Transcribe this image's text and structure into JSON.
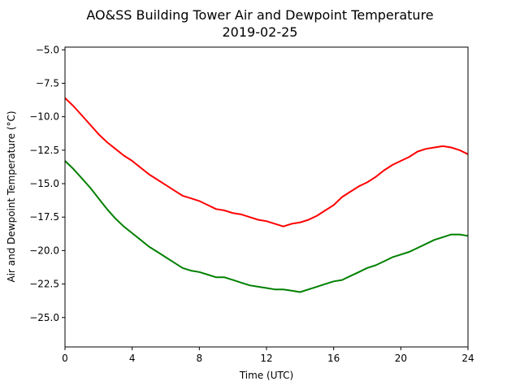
{
  "chart_data": {
    "type": "line",
    "title": "AO&SS Building Tower Air and Dewpoint Temperature",
    "subtitle": "2019-02-25",
    "xlabel": "Time (UTC)",
    "ylabel": "Air and Dewpoint Temperature (°C)",
    "xlim": [
      0,
      24
    ],
    "ylim": [
      -27.2,
      -4.8
    ],
    "xticks": [
      0,
      4,
      8,
      12,
      16,
      20,
      24
    ],
    "yticks": [
      -5.0,
      -7.5,
      -10.0,
      -12.5,
      -15.0,
      -17.5,
      -20.0,
      -22.5,
      -25.0
    ],
    "ytick_labels": [
      "−5.0",
      "−7.5",
      "−10.0",
      "−12.5",
      "−15.0",
      "−17.5",
      "−20.0",
      "−22.5",
      "−25.0"
    ],
    "grid": false,
    "legend": "none",
    "series": [
      {
        "color": "#ff0000",
        "x": [
          0,
          0.5,
          1,
          1.5,
          2,
          2.5,
          3,
          3.5,
          4,
          4.5,
          5,
          5.5,
          6,
          6.5,
          7,
          7.5,
          8,
          8.5,
          9,
          9.5,
          10,
          10.5,
          11,
          11.5,
          12,
          12.5,
          13,
          13.5,
          14,
          14.5,
          15,
          15.5,
          16,
          16.5,
          17,
          17.5,
          18,
          18.5,
          19,
          19.5,
          20,
          20.5,
          21,
          21.5,
          22,
          22.5,
          23,
          23.5,
          24
        ],
        "y": [
          -8.6,
          -9.2,
          -9.9,
          -10.6,
          -11.3,
          -11.9,
          -12.4,
          -12.9,
          -13.3,
          -13.8,
          -14.3,
          -14.7,
          -15.1,
          -15.5,
          -15.9,
          -16.1,
          -16.3,
          -16.6,
          -16.9,
          -17.0,
          -17.2,
          -17.3,
          -17.5,
          -17.7,
          -17.8,
          -18.0,
          -18.2,
          -18.0,
          -17.9,
          -17.7,
          -17.4,
          -17.0,
          -16.6,
          -16.0,
          -15.6,
          -15.2,
          -14.9,
          -14.5,
          -14.0,
          -13.6,
          -13.3,
          -13.0,
          -12.6,
          -12.4,
          -12.3,
          -12.2,
          -12.3,
          -12.5,
          -12.8
        ]
      },
      {
        "color": "#008000",
        "x": [
          0,
          0.5,
          1,
          1.5,
          2,
          2.5,
          3,
          3.5,
          4,
          4.5,
          5,
          5.5,
          6,
          6.5,
          7,
          7.5,
          8,
          8.5,
          9,
          9.5,
          10,
          10.5,
          11,
          11.5,
          12,
          12.5,
          13,
          13.5,
          14,
          14.5,
          15,
          15.5,
          16,
          16.5,
          17,
          17.5,
          18,
          18.5,
          19,
          19.5,
          20,
          20.5,
          21,
          21.5,
          22,
          22.5,
          23,
          23.5,
          24
        ],
        "y": [
          -13.3,
          -13.9,
          -14.6,
          -15.3,
          -16.1,
          -16.9,
          -17.6,
          -18.2,
          -18.7,
          -19.2,
          -19.7,
          -20.1,
          -20.5,
          -20.9,
          -21.3,
          -21.5,
          -21.6,
          -21.8,
          -22.0,
          -22.0,
          -22.2,
          -22.4,
          -22.6,
          -22.7,
          -22.8,
          -22.9,
          -22.9,
          -23.0,
          -23.1,
          -22.9,
          -22.7,
          -22.5,
          -22.3,
          -22.2,
          -21.9,
          -21.6,
          -21.3,
          -21.1,
          -20.8,
          -20.5,
          -20.3,
          -20.1,
          -19.8,
          -19.5,
          -19.2,
          -19.0,
          -18.8,
          -18.8,
          -18.9
        ]
      }
    ]
  }
}
